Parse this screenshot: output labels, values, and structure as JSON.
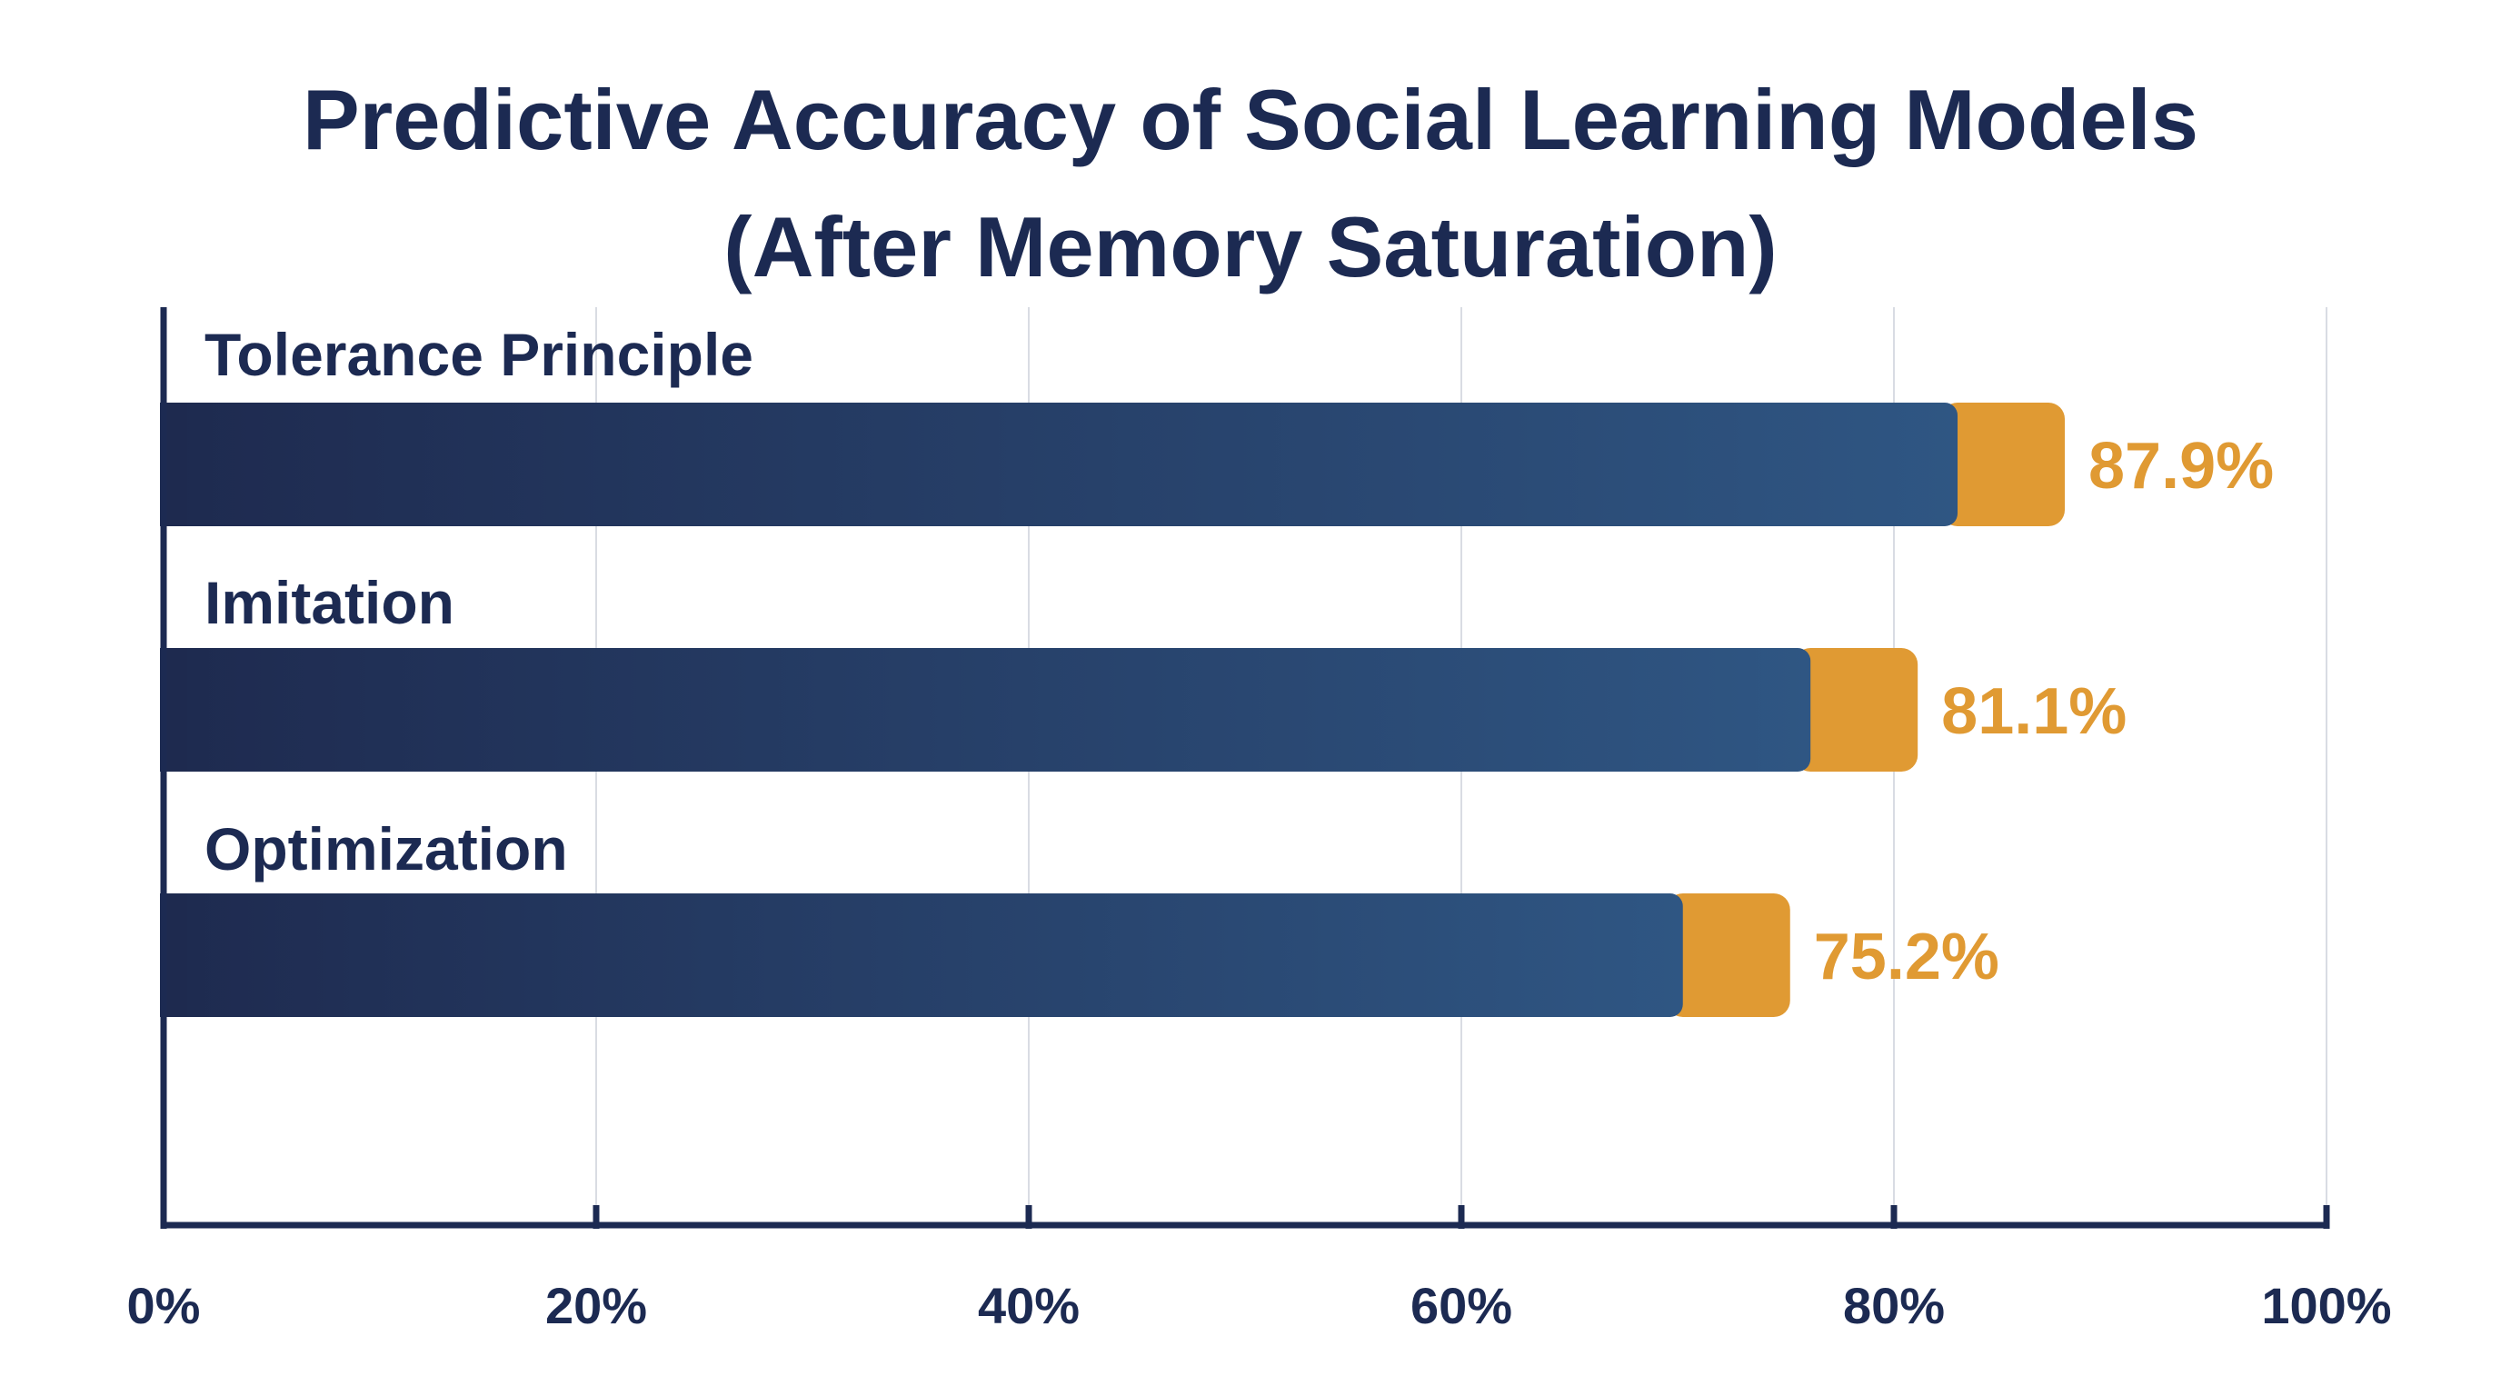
{
  "chart_data": {
    "type": "bar",
    "orientation": "horizontal",
    "title_lines": [
      "Predictive Accuracy of Social Learning Models",
      "(After Memory Saturation)"
    ],
    "categories": [
      "Tolerance Principle",
      "Imitation",
      "Optimization"
    ],
    "values": [
      87.9,
      81.1,
      75.2
    ],
    "value_labels": [
      "87.9%",
      "81.1%",
      "75.2%"
    ],
    "xlim": [
      0,
      100
    ],
    "xticks": [
      0,
      20,
      40,
      60,
      80,
      100
    ],
    "xtick_labels": [
      "0%",
      "20%",
      "40%",
      "60%",
      "80%",
      "100%"
    ],
    "xlabel": "",
    "ylabel": "",
    "grid": "vertical",
    "legend": "none",
    "colors": {
      "title": "#1c2a52",
      "axis": "#1c2a52",
      "bar_gradient_start": "#1e2a4f",
      "bar_gradient_end": "#2f5683",
      "bar_tip": "#e09a33",
      "value_label": "#e09a33",
      "grid": "#d9dce3"
    }
  }
}
